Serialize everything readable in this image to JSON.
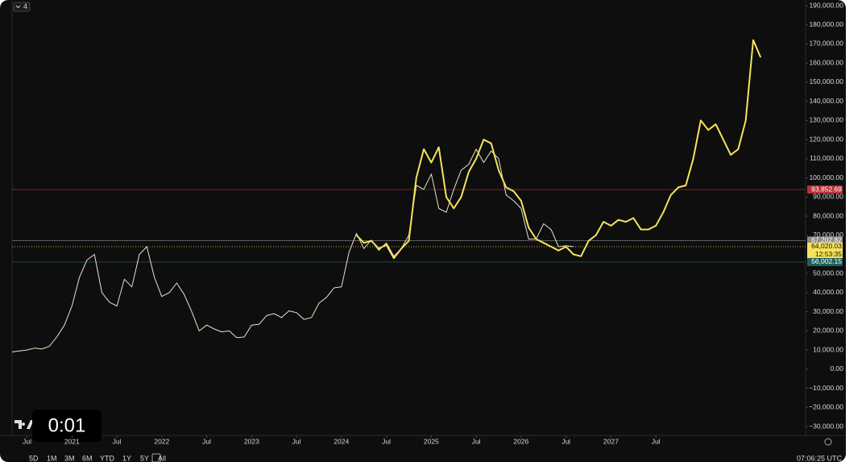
{
  "chart_data": {
    "type": "line",
    "ylim": [
      -35000,
      192000
    ],
    "yticks": [
      {
        "value": 190000,
        "label": "190,000.00"
      },
      {
        "value": 180000,
        "label": "180,000.00"
      },
      {
        "value": 170000,
        "label": "170,000.00"
      },
      {
        "value": 160000,
        "label": "160,000.00"
      },
      {
        "value": 150000,
        "label": "150,000.00"
      },
      {
        "value": 140000,
        "label": "140,000.00"
      },
      {
        "value": 130000,
        "label": "130,000.00"
      },
      {
        "value": 120000,
        "label": "120,000.00"
      },
      {
        "value": 110000,
        "label": "110,000.00"
      },
      {
        "value": 100000,
        "label": "100,000.00"
      },
      {
        "value": 90000,
        "label": "90,000.00"
      },
      {
        "value": 80000,
        "label": "80,000.00"
      },
      {
        "value": 70000,
        "label": "70,000.00"
      },
      {
        "value": 50000,
        "label": "50,000.00"
      },
      {
        "value": 40000,
        "label": "40,000.00"
      },
      {
        "value": 30000,
        "label": "30,000.00"
      },
      {
        "value": 20000,
        "label": "20,000.00"
      },
      {
        "value": 10000,
        "label": "10,000.00"
      },
      {
        "value": 0,
        "label": "0.00"
      },
      {
        "value": -10000,
        "label": "−10,000.00"
      },
      {
        "value": -20000,
        "label": "−20,000.00"
      },
      {
        "value": -30000,
        "label": "−30,000.00"
      }
    ],
    "xlim": [
      "2020-05",
      "2029-03"
    ],
    "xticks": [
      {
        "value": "2020-07",
        "label": "Jul"
      },
      {
        "value": "2021-01",
        "label": "2021"
      },
      {
        "value": "2021-07",
        "label": "Jul"
      },
      {
        "value": "2022-01",
        "label": "2022"
      },
      {
        "value": "2022-07",
        "label": "Jul"
      },
      {
        "value": "2023-01",
        "label": "2023"
      },
      {
        "value": "2023-07",
        "label": "Jul"
      },
      {
        "value": "2024-01",
        "label": "2024"
      },
      {
        "value": "2024-07",
        "label": "Jul"
      },
      {
        "value": "2025-01",
        "label": "2025"
      },
      {
        "value": "2025-07",
        "label": "Jul"
      },
      {
        "value": "2026-01",
        "label": "2026"
      },
      {
        "value": "2026-07",
        "label": "Jul"
      },
      {
        "value": "2027-01",
        "label": "2027"
      },
      {
        "value": "2027-07",
        "label": "Jul"
      }
    ],
    "grid": false,
    "series": [
      {
        "color": "#e8e4c8",
        "x": [
          "2020-05",
          "2020-06",
          "2020-07",
          "2020-08",
          "2020-09",
          "2020-10",
          "2020-11",
          "2020-12",
          "2021-01",
          "2021-02",
          "2021-03",
          "2021-04",
          "2021-05",
          "2021-06",
          "2021-07",
          "2021-08",
          "2021-09",
          "2021-10",
          "2021-11",
          "2021-12",
          "2022-01",
          "2022-02",
          "2022-03",
          "2022-04",
          "2022-05",
          "2022-06",
          "2022-07",
          "2022-08",
          "2022-09",
          "2022-10",
          "2022-11",
          "2022-12",
          "2023-01",
          "2023-02",
          "2023-03",
          "2023-04",
          "2023-05",
          "2023-06",
          "2023-07",
          "2023-08",
          "2023-09",
          "2023-10",
          "2023-11",
          "2023-12",
          "2024-01",
          "2024-02",
          "2024-03",
          "2024-04",
          "2024-05",
          "2024-06",
          "2024-07",
          "2024-08",
          "2024-09",
          "2024-10",
          "2024-11",
          "2024-12",
          "2025-01",
          "2025-02",
          "2025-03",
          "2025-04",
          "2025-05",
          "2025-06",
          "2025-07",
          "2025-08",
          "2025-09",
          "2025-10",
          "2025-11",
          "2025-12",
          "2026-01",
          "2026-02",
          "2026-03",
          "2026-04",
          "2026-05",
          "2026-06",
          "2026-07",
          "2026-08"
        ],
        "values": [
          9000,
          9500,
          10000,
          11000,
          10500,
          12000,
          17000,
          23000,
          33000,
          48000,
          57000,
          60000,
          40000,
          35000,
          33000,
          47000,
          43000,
          60000,
          64000,
          48000,
          38000,
          40000,
          45000,
          39000,
          30000,
          20000,
          23000,
          21000,
          19500,
          20000,
          16500,
          16800,
          23000,
          23500,
          28000,
          29000,
          27000,
          30500,
          29500,
          26000,
          27000,
          34500,
          37500,
          42500,
          43000,
          61000,
          71000,
          63000,
          67500,
          62000,
          66000,
          59000,
          63000,
          70000,
          96000,
          94000,
          102000,
          84000,
          82000,
          94000,
          104000,
          107000,
          115000,
          108000,
          114000,
          110000,
          91000,
          88000,
          84000,
          68000,
          68000,
          76000,
          73000,
          64000,
          64500,
          64000
        ]
      },
      {
        "color": "#f5e35a",
        "x": [
          "2024-03",
          "2024-04",
          "2024-05",
          "2024-06",
          "2024-07",
          "2024-08",
          "2024-09",
          "2024-10",
          "2024-11",
          "2024-12",
          "2025-01",
          "2025-02",
          "2025-03",
          "2025-04",
          "2025-05",
          "2025-06",
          "2025-07",
          "2025-08",
          "2025-09",
          "2025-10",
          "2025-11",
          "2025-12",
          "2026-01",
          "2026-02",
          "2026-03",
          "2026-04",
          "2026-05",
          "2026-06",
          "2026-07",
          "2026-08",
          "2026-09",
          "2026-10",
          "2026-11",
          "2026-12",
          "2027-01",
          "2027-02",
          "2027-03",
          "2027-04",
          "2027-05",
          "2027-06",
          "2027-07",
          "2027-08",
          "2027-09",
          "2027-10",
          "2027-11",
          "2027-12",
          "2028-01",
          "2028-02",
          "2028-03",
          "2028-04",
          "2028-05",
          "2028-06",
          "2028-07",
          "2028-08",
          "2028-09"
        ],
        "values": [
          70000,
          66000,
          67000,
          63000,
          65000,
          58000,
          63000,
          67000,
          100000,
          115000,
          108000,
          116000,
          90000,
          84000,
          90000,
          103000,
          110000,
          120000,
          118000,
          104000,
          95000,
          93000,
          88000,
          74000,
          68000,
          66000,
          64000,
          62000,
          64000,
          60000,
          59000,
          67000,
          70000,
          77000,
          75000,
          78000,
          77000,
          79000,
          73000,
          73000,
          75000,
          82000,
          91000,
          95000,
          96000,
          110000,
          130000,
          125000,
          128000,
          120000,
          112000,
          115000,
          130000,
          172000,
          163000
        ]
      }
    ],
    "price_lines": [
      {
        "value": 93852.69,
        "label": "93,852.69",
        "color": "#b8323a"
      },
      {
        "value": 67202.82,
        "label": "67,202.82",
        "color": "#8a8a8a"
      },
      {
        "value": 64020.03,
        "label": "64,020.03",
        "countdown": "12:53:35",
        "color": "#f5e35a"
      },
      {
        "value": 56002.15,
        "label": "56,002.15",
        "color": "#1f5f5a"
      }
    ]
  },
  "ui": {
    "interval": "4",
    "ranges": [
      "5D",
      "1M",
      "3M",
      "6M",
      "YTD",
      "1Y",
      "5Y",
      "All"
    ],
    "clock": "07:06:25 UTC",
    "video_time": "0:01"
  }
}
